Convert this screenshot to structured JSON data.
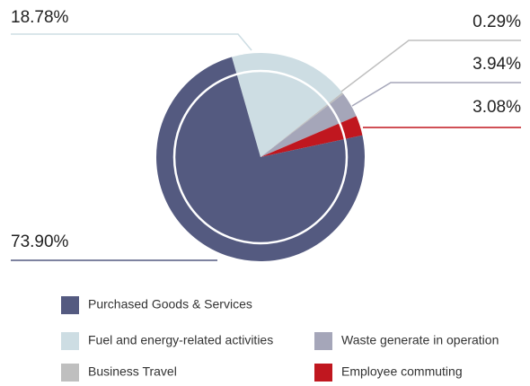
{
  "chart_data": {
    "type": "pie",
    "categories": [
      "Fuel and energy-related activities",
      "Business Travel",
      "Waste generate in operation",
      "Employee commuting",
      "Purchased Goods & Services"
    ],
    "values": [
      18.78,
      0.29,
      3.94,
      3.08,
      73.9
    ],
    "value_labels": [
      "18.78%",
      "0.29%",
      "3.94%",
      "3.08%",
      "73.90%"
    ],
    "colors": [
      "#cddde3",
      "#bfbfbf",
      "#a5a6b9",
      "#c0171f",
      "#545a80"
    ]
  }
}
